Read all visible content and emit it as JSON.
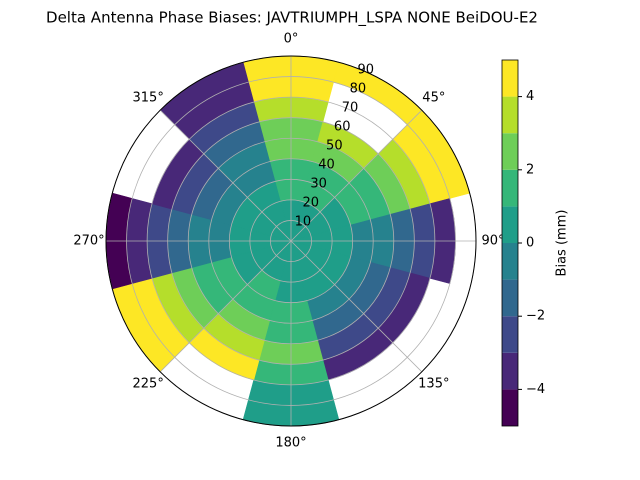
{
  "chart_data": {
    "type": "polar_contour",
    "title": "Delta Antenna Phase Biases: JAVTRIUMPH_LSPA NONE BeiDOU-E2",
    "theta": [
      0,
      30,
      60,
      90,
      120,
      150,
      180,
      210,
      240,
      270,
      300,
      330
    ],
    "r": [
      5,
      15,
      25,
      35,
      45,
      55,
      65,
      75,
      85
    ],
    "values": [
      [
        0,
        0,
        1,
        1,
        2,
        2,
        3,
        4,
        4
      ],
      [
        0,
        0,
        1,
        1,
        2,
        3,
        null,
        null,
        4
      ],
      [
        0,
        0,
        0,
        1,
        1,
        2,
        3,
        4,
        4
      ],
      [
        0,
        0,
        0,
        -1,
        -1,
        -2,
        -3,
        -4,
        null
      ],
      [
        0,
        0,
        0,
        -1,
        -2,
        -3,
        -4,
        null,
        null
      ],
      [
        0,
        0,
        0,
        -1,
        -2,
        -3,
        -4,
        null,
        null
      ],
      [
        0,
        0,
        0,
        1,
        1,
        2,
        1,
        0,
        0
      ],
      [
        0,
        0,
        1,
        1,
        2,
        3,
        4,
        null,
        null
      ],
      [
        0,
        0,
        0,
        1,
        1,
        2,
        3,
        4,
        4
      ],
      [
        0,
        0,
        0,
        -1,
        -1,
        -2,
        -3,
        -4,
        -5
      ],
      [
        0,
        0,
        0,
        -1,
        -2,
        -3,
        -4,
        null,
        null
      ],
      [
        0,
        0,
        0,
        -1,
        -1,
        -2,
        -3,
        -4,
        -4
      ]
    ],
    "levels": [
      -5,
      -4,
      -3,
      -2,
      -1,
      0,
      1,
      2,
      3,
      4,
      5
    ],
    "colors": [
      "#440154",
      "#482878",
      "#3e4989",
      "#31688e",
      "#26828e",
      "#1f9e89",
      "#35b779",
      "#6ece58",
      "#b5de2b",
      "#fde725"
    ],
    "rlim": [
      0,
      90
    ],
    "rticks": [
      10,
      20,
      30,
      40,
      50,
      60,
      70,
      80,
      90
    ],
    "thetaticks": [
      {
        "value": 0,
        "label": "0°"
      },
      {
        "value": 45,
        "label": "45°"
      },
      {
        "value": 90,
        "label": "90°"
      },
      {
        "value": 135,
        "label": "135°"
      },
      {
        "value": 180,
        "label": "180°"
      },
      {
        "value": 225,
        "label": "225°"
      },
      {
        "value": 270,
        "label": "270°"
      },
      {
        "value": 315,
        "label": "315°"
      }
    ],
    "colorbar_label": "Bias (mm)",
    "colorbar_lim": [
      -5,
      5
    ],
    "colorbar_ticks": [
      {
        "value": -4,
        "label": "−4"
      },
      {
        "value": -2,
        "label": "−2"
      },
      {
        "value": 0,
        "label": "0"
      },
      {
        "value": 2,
        "label": "2"
      },
      {
        "value": 4,
        "label": "4"
      }
    ],
    "grid": true
  }
}
